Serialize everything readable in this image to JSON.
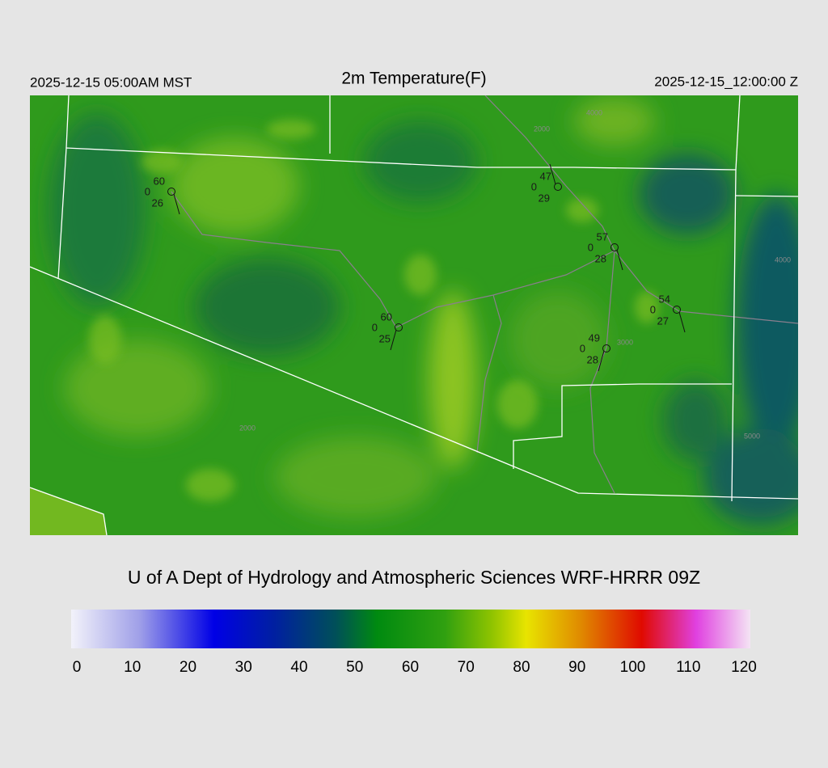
{
  "header": {
    "left": "2025-12-15 05:00AM MST",
    "title": "2m Temperature(F)",
    "right": "2025-12-15_12:00:00 Z"
  },
  "stations": [
    {
      "temp": 60,
      "mid": 0,
      "dew": 26
    },
    {
      "temp": 47,
      "mid": 0,
      "dew": 29
    },
    {
      "temp": 57,
      "mid": 0,
      "dew": 28
    },
    {
      "temp": 60,
      "mid": 0,
      "dew": 25
    },
    {
      "temp": 54,
      "mid": 0,
      "dew": 27
    },
    {
      "temp": 49,
      "mid": 0,
      "dew": 28
    }
  ],
  "contour_labels": [
    "2000",
    "3000",
    "4000",
    "5000",
    "2000",
    "4000"
  ],
  "footer": "U of A Dept of Hydrology and Atmospheric Sciences WRF-HRRR 09Z",
  "colorbar": {
    "range": [
      0,
      120
    ],
    "ticks": [
      0,
      10,
      20,
      30,
      40,
      50,
      60,
      70,
      80,
      90,
      100,
      110,
      120
    ]
  }
}
